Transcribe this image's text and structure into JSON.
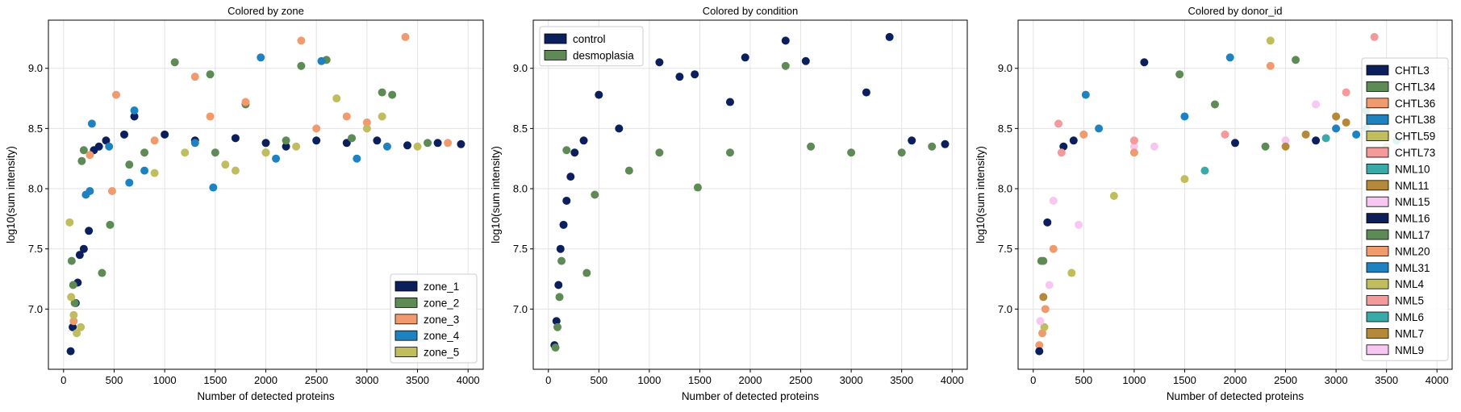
{
  "chart_data": [
    {
      "type": "scatter",
      "title": "Colored by zone",
      "xlabel": "Number of detected proteins",
      "ylabel": "log10(sum intensity)",
      "xlim": [
        -150,
        4150
      ],
      "ylim": [
        6.5,
        9.4
      ],
      "xticks": [
        "0",
        "500",
        "1000",
        "1500",
        "2000",
        "2500",
        "3000",
        "3500",
        "4000"
      ],
      "yticks": [
        "7.0",
        "7.5",
        "8.0",
        "8.5",
        "9.0"
      ],
      "grid": true,
      "legend_position": "lower-right",
      "series": [
        {
          "name": "zone_1",
          "color": "#0b1f5c",
          "points": [
            [
              70,
              6.65
            ],
            [
              90,
              6.85
            ],
            [
              120,
              7.05
            ],
            [
              140,
              7.22
            ],
            [
              160,
              7.45
            ],
            [
              200,
              7.5
            ],
            [
              250,
              7.65
            ],
            [
              300,
              8.32
            ],
            [
              350,
              8.35
            ],
            [
              420,
              8.4
            ],
            [
              600,
              8.45
            ],
            [
              700,
              8.6
            ],
            [
              1000,
              8.45
            ],
            [
              1300,
              8.4
            ],
            [
              1700,
              8.42
            ],
            [
              2000,
              8.38
            ],
            [
              2200,
              8.35
            ],
            [
              2500,
              8.4
            ],
            [
              2800,
              8.38
            ],
            [
              3100,
              8.4
            ],
            [
              3400,
              8.36
            ],
            [
              3700,
              8.38
            ],
            [
              3930,
              8.37
            ]
          ]
        },
        {
          "name": "zone_2",
          "color": "#5d8a55",
          "points": [
            [
              80,
              7.4
            ],
            [
              95,
              7.2
            ],
            [
              110,
              7.05
            ],
            [
              180,
              8.23
            ],
            [
              200,
              8.32
            ],
            [
              380,
              7.3
            ],
            [
              460,
              7.7
            ],
            [
              650,
              8.2
            ],
            [
              800,
              8.3
            ],
            [
              1100,
              9.05
            ],
            [
              1450,
              8.95
            ],
            [
              1500,
              8.3
            ],
            [
              1800,
              8.7
            ],
            [
              2200,
              8.4
            ],
            [
              2350,
              9.02
            ],
            [
              2600,
              9.07
            ],
            [
              2850,
              8.42
            ],
            [
              3150,
              8.8
            ],
            [
              3250,
              8.78
            ],
            [
              3600,
              8.38
            ]
          ]
        },
        {
          "name": "zone_3",
          "color": "#f09a6e",
          "points": [
            [
              100,
              6.9
            ],
            [
              260,
              8.28
            ],
            [
              480,
              7.98
            ],
            [
              520,
              8.78
            ],
            [
              900,
              8.4
            ],
            [
              1300,
              8.93
            ],
            [
              1450,
              8.6
            ],
            [
              1800,
              8.72
            ],
            [
              2000,
              8.3
            ],
            [
              2350,
              9.23
            ],
            [
              2500,
              8.5
            ],
            [
              2800,
              8.6
            ],
            [
              3000,
              8.55
            ],
            [
              3380,
              9.26
            ],
            [
              3800,
              8.38
            ]
          ]
        },
        {
          "name": "zone_4",
          "color": "#1f82c0",
          "points": [
            [
              220,
              7.95
            ],
            [
              260,
              7.98
            ],
            [
              280,
              8.54
            ],
            [
              450,
              8.35
            ],
            [
              650,
              8.05
            ],
            [
              700,
              8.65
            ],
            [
              800,
              8.15
            ],
            [
              1300,
              8.38
            ],
            [
              1480,
              8.01
            ],
            [
              1950,
              9.09
            ],
            [
              2100,
              8.25
            ],
            [
              2550,
              9.06
            ],
            [
              2900,
              8.25
            ],
            [
              3200,
              8.35
            ]
          ]
        },
        {
          "name": "zone_5",
          "color": "#bfbd5d",
          "points": [
            [
              60,
              7.72
            ],
            [
              75,
              7.1
            ],
            [
              100,
              6.95
            ],
            [
              130,
              6.8
            ],
            [
              170,
              6.85
            ],
            [
              900,
              8.13
            ],
            [
              1200,
              8.3
            ],
            [
              1600,
              8.2
            ],
            [
              1700,
              8.15
            ],
            [
              2000,
              8.3
            ],
            [
              2300,
              8.35
            ],
            [
              2700,
              8.75
            ],
            [
              3000,
              8.5
            ],
            [
              3150,
              8.6
            ],
            [
              3500,
              8.35
            ]
          ]
        }
      ]
    },
    {
      "type": "scatter",
      "title": "Colored by condition",
      "xlabel": "Number of detected proteins",
      "ylabel": "log10(sum intensity)",
      "xlim": [
        -150,
        4150
      ],
      "ylim": [
        6.5,
        9.4
      ],
      "xticks": [
        "0",
        "500",
        "1000",
        "1500",
        "2000",
        "2500",
        "3000",
        "3500",
        "4000"
      ],
      "yticks": [
        "7.0",
        "7.5",
        "8.0",
        "8.5",
        "9.0"
      ],
      "grid": true,
      "legend_position": "upper-left",
      "series": [
        {
          "name": "control",
          "color": "#0b1f5c",
          "points": [
            [
              60,
              6.7
            ],
            [
              80,
              6.9
            ],
            [
              100,
              7.2
            ],
            [
              120,
              7.5
            ],
            [
              150,
              7.7
            ],
            [
              180,
              7.9
            ],
            [
              220,
              8.1
            ],
            [
              260,
              8.3
            ],
            [
              350,
              8.4
            ],
            [
              500,
              8.78
            ],
            [
              700,
              8.5
            ],
            [
              1100,
              9.05
            ],
            [
              1300,
              8.93
            ],
            [
              1450,
              8.95
            ],
            [
              1800,
              8.72
            ],
            [
              1950,
              9.09
            ],
            [
              2350,
              9.23
            ],
            [
              2550,
              9.06
            ],
            [
              3150,
              8.8
            ],
            [
              3380,
              9.26
            ],
            [
              3600,
              8.4
            ],
            [
              3930,
              8.37
            ]
          ]
        },
        {
          "name": "desmoplasia",
          "color": "#5d8a55",
          "points": [
            [
              70,
              6.68
            ],
            [
              90,
              6.85
            ],
            [
              110,
              7.1
            ],
            [
              130,
              7.4
            ],
            [
              180,
              8.32
            ],
            [
              380,
              7.3
            ],
            [
              460,
              7.95
            ],
            [
              800,
              8.15
            ],
            [
              1100,
              8.3
            ],
            [
              1480,
              8.01
            ],
            [
              1800,
              8.3
            ],
            [
              2350,
              9.02
            ],
            [
              2600,
              8.35
            ],
            [
              3000,
              8.3
            ],
            [
              3500,
              8.3
            ],
            [
              3800,
              8.35
            ]
          ]
        }
      ]
    },
    {
      "type": "scatter",
      "title": "Colored by donor_id",
      "xlabel": "Number of detected proteins",
      "ylabel": "log10(sum intensity)",
      "xlim": [
        -150,
        4150
      ],
      "ylim": [
        6.5,
        9.4
      ],
      "xticks": [
        "0",
        "500",
        "1000",
        "1500",
        "2000",
        "2500",
        "3000",
        "3500",
        "4000"
      ],
      "yticks": [
        "7.0",
        "7.5",
        "8.0",
        "8.5",
        "9.0"
      ],
      "grid": true,
      "legend_position": "right",
      "series": [
        {
          "name": "CHTL3",
          "color": "#0b1f5c",
          "points": [
            [
              300,
              8.35
            ],
            [
              1100,
              9.05
            ],
            [
              2800,
              8.4
            ]
          ]
        },
        {
          "name": "CHTL34",
          "color": "#5d8a55",
          "points": [
            [
              80,
              7.4
            ],
            [
              1450,
              8.95
            ],
            [
              2600,
              9.07
            ]
          ]
        },
        {
          "name": "CHTL36",
          "color": "#f09a6e",
          "points": [
            [
              60,
              6.7
            ],
            [
              120,
              7.0
            ],
            [
              2350,
              9.02
            ]
          ]
        },
        {
          "name": "CHTL38",
          "color": "#1f82c0",
          "points": [
            [
              520,
              8.78
            ],
            [
              1950,
              9.09
            ],
            [
              3200,
              8.45
            ]
          ]
        },
        {
          "name": "CHTL59",
          "color": "#bfbd5d",
          "points": [
            [
              2350,
              9.23
            ],
            [
              800,
              7.94
            ],
            [
              1500,
              8.08
            ]
          ]
        },
        {
          "name": "CHTL73",
          "color": "#f49a9a",
          "points": [
            [
              3380,
              9.26
            ],
            [
              250,
              8.54
            ],
            [
              3100,
              8.8
            ]
          ]
        },
        {
          "name": "NML10",
          "color": "#3aaaa8",
          "points": [
            [
              1700,
              8.15
            ],
            [
              3300,
              8.65
            ],
            [
              3600,
              8.4
            ]
          ]
        },
        {
          "name": "NML11",
          "color": "#b5893a",
          "points": [
            [
              3000,
              8.6
            ],
            [
              3100,
              8.55
            ],
            [
              2700,
              8.45
            ]
          ]
        },
        {
          "name": "NML15",
          "color": "#f7c7f2",
          "points": [
            [
              200,
              7.9
            ],
            [
              1000,
              8.35
            ],
            [
              2500,
              8.4
            ]
          ]
        },
        {
          "name": "NML16",
          "color": "#0b1f5c",
          "points": [
            [
              60,
              6.65
            ],
            [
              140,
              7.72
            ],
            [
              400,
              8.4
            ],
            [
              2000,
              8.38
            ]
          ]
        },
        {
          "name": "NML17",
          "color": "#5d8a55",
          "points": [
            [
              100,
              7.4
            ],
            [
              1800,
              8.7
            ],
            [
              2300,
              8.35
            ]
          ]
        },
        {
          "name": "NML20",
          "color": "#f09a6e",
          "points": [
            [
              90,
              6.8
            ],
            [
              200,
              7.5
            ],
            [
              500,
              8.45
            ],
            [
              1000,
              8.3
            ]
          ]
        },
        {
          "name": "NML31",
          "color": "#1f82c0",
          "points": [
            [
              650,
              8.5
            ],
            [
              1500,
              8.6
            ],
            [
              3000,
              8.5
            ]
          ]
        },
        {
          "name": "NML4",
          "color": "#bfbd5d",
          "points": [
            [
              110,
              6.85
            ],
            [
              380,
              7.3
            ],
            [
              3500,
              8.35
            ]
          ]
        },
        {
          "name": "NML5",
          "color": "#f49a9a",
          "points": [
            [
              280,
              8.3
            ],
            [
              1000,
              8.4
            ],
            [
              1900,
              8.45
            ]
          ]
        },
        {
          "name": "NML6",
          "color": "#3aaaa8",
          "points": [
            [
              2900,
              8.42
            ],
            [
              3300,
              8.5
            ]
          ]
        },
        {
          "name": "NML7",
          "color": "#b5893a",
          "points": [
            [
              100,
              7.1
            ],
            [
              2500,
              8.35
            ]
          ]
        },
        {
          "name": "NML9",
          "color": "#f7c7f2",
          "points": [
            [
              70,
              6.9
            ],
            [
              160,
              7.2
            ],
            [
              450,
              7.7
            ],
            [
              1200,
              8.35
            ],
            [
              2800,
              8.7
            ],
            [
              3600,
              8.3
            ]
          ]
        }
      ]
    }
  ]
}
